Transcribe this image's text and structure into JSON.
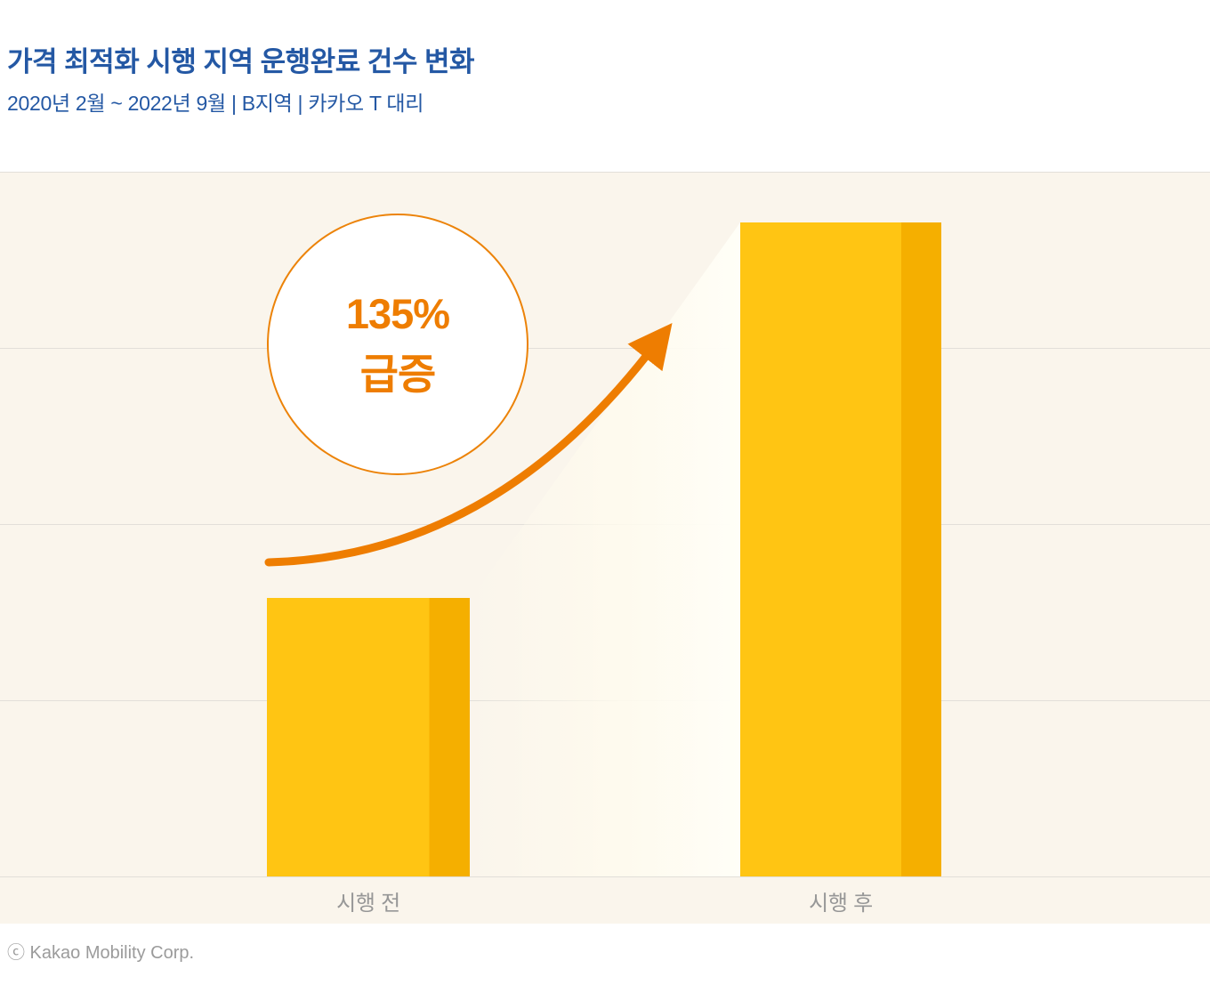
{
  "header": {
    "title": "가격 최적화 시행 지역 운행완료 건수 변화",
    "subtitle": "2020년 2월 ~ 2022년 9월 | B지역 | 카카오 T 대리"
  },
  "chart_data": {
    "type": "bar",
    "categories": [
      "시행 전",
      "시행 후"
    ],
    "values": [
      100,
      235
    ],
    "value_note": "relative index, 시행 전 = 100 (bars imply +135%)",
    "title": "가격 최적화 시행 지역 운행완료 건수 변화",
    "subtitle": "2020년 2월 ~ 2022년 9월 | B지역 | 카카오 T 대리",
    "annotation": "135% 급증",
    "xlabel": "",
    "ylabel": "",
    "y_axis_labels_visible": false,
    "gridlines": 5,
    "legend": "none"
  },
  "badge": {
    "line1": "135%",
    "line2": "급증"
  },
  "footer": {
    "copyright": "ⓒ Kakao Mobility Corp."
  },
  "colors": {
    "title_blue": "#2458A4",
    "bar_main": "#FFC513",
    "bar_side": "#F5AF00",
    "accent_orange": "#EE7D01",
    "chart_bg": "#FAF5EC",
    "gridline": "#E2DFD9",
    "label_gray": "#979797",
    "footer_gray": "#9B9B9B"
  }
}
